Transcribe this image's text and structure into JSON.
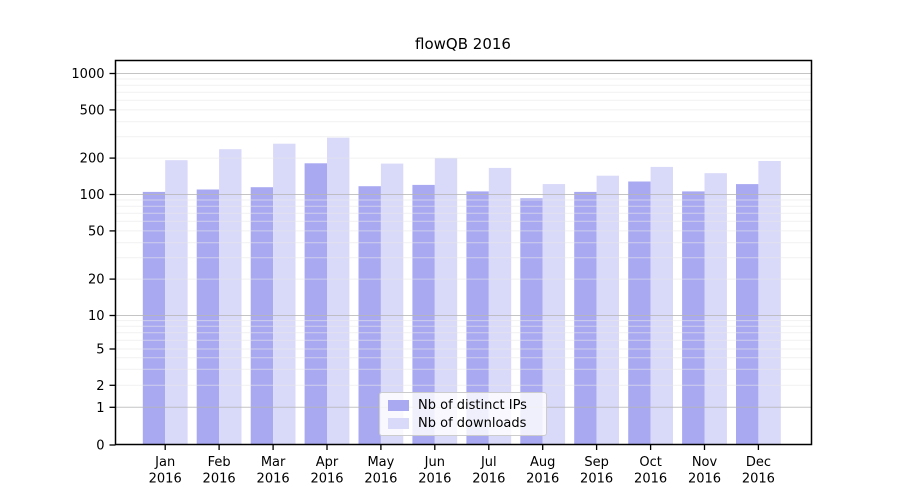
{
  "window": {
    "title": "flowQB 2016"
  },
  "chart_data": {
    "type": "bar",
    "title": "flowQB 2016",
    "categories": [
      "Jan 2016",
      "Feb 2016",
      "Mar 2016",
      "Apr 2016",
      "May 2016",
      "Jun 2016",
      "Jul 2016",
      "Aug 2016",
      "Sep 2016",
      "Oct 2016",
      "Nov 2016",
      "Dec 2016"
    ],
    "series": [
      {
        "name": "Nb of distinct IPs",
        "color": "#a9a9f2",
        "values": [
          105,
          110,
          115,
          181,
          117,
          120,
          106,
          93,
          105,
          128,
          106,
          122
        ]
      },
      {
        "name": "Nb of downloads",
        "color": "#d9d9f9",
        "values": [
          192,
          237,
          263,
          295,
          180,
          200,
          166,
          122,
          143,
          169,
          150,
          189
        ]
      }
    ],
    "xlabel": "",
    "ylabel": "",
    "yscale": "symlog",
    "yticks": [
      1000,
      500,
      200,
      100,
      50,
      20,
      10,
      5,
      2,
      1,
      0
    ],
    "ylim": [
      0,
      1300
    ],
    "grid": "major+minor horizontal",
    "legend_position": "lower center"
  }
}
